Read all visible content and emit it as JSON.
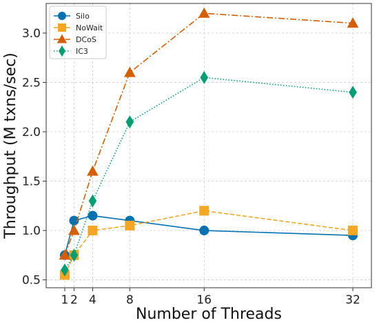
{
  "chart_data": {
    "type": "line",
    "title": "",
    "xlabel": "Number of Threads",
    "ylabel": "Throughput (M txns/sec)",
    "x": [
      1,
      2,
      4,
      8,
      16,
      32
    ],
    "xticks": [
      1,
      2,
      4,
      8,
      16,
      32
    ],
    "yticks": [
      0.5,
      1.0,
      1.5,
      2.0,
      2.5,
      3.0
    ],
    "xlim": [
      -1.0,
      34.0
    ],
    "ylim": [
      0.42,
      3.3
    ],
    "grid": true,
    "legend_position": "top-left",
    "series": [
      {
        "name": "Silo",
        "values": [
          0.75,
          1.1,
          1.15,
          1.1,
          1.0,
          0.95
        ],
        "color": "#0072B2",
        "marker": "circle",
        "linestyle": "solid"
      },
      {
        "name": "NoWait",
        "values": [
          0.55,
          0.75,
          1.0,
          1.05,
          1.2,
          1.0
        ],
        "color": "#F5A623",
        "marker": "square",
        "linestyle": "dashed"
      },
      {
        "name": "DCoS",
        "values": [
          0.75,
          1.0,
          1.6,
          2.6,
          3.2,
          3.1
        ],
        "color": "#D55E00",
        "marker": "triangle",
        "linestyle": "dashdot"
      },
      {
        "name": "IC3",
        "values": [
          0.6,
          0.75,
          1.3,
          2.1,
          2.55,
          2.4
        ],
        "color": "#009E73",
        "marker": "diamond",
        "linestyle": "dotted"
      }
    ]
  }
}
